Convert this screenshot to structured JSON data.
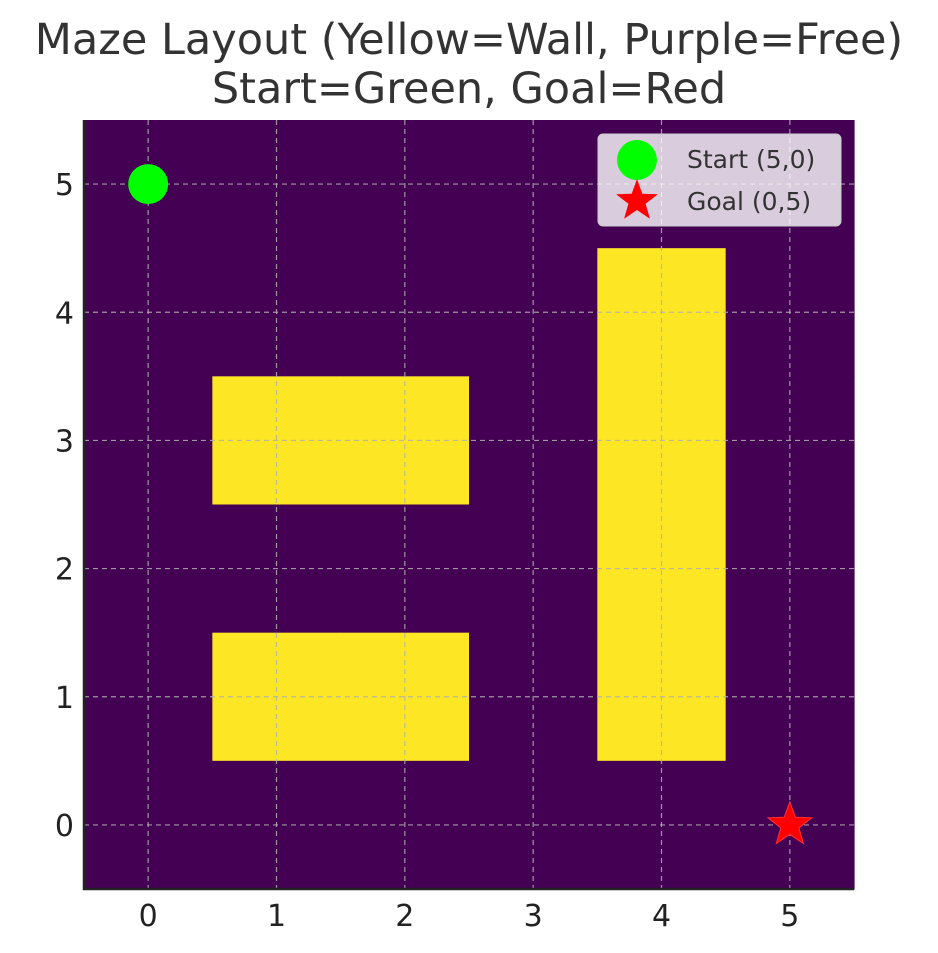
{
  "chart_data": {
    "type": "heatmap",
    "title_lines": [
      "Maze Layout (Yellow=Wall, Purple=Free)",
      "Start=Green, Goal=Red"
    ],
    "xlabel": "",
    "ylabel": "",
    "xlim": [
      -0.5,
      5.5
    ],
    "ylim": [
      -0.5,
      5.5
    ],
    "x_ticks": [
      0,
      1,
      2,
      3,
      4,
      5
    ],
    "y_ticks": [
      0,
      1,
      2,
      3,
      4,
      5
    ],
    "grid": true,
    "legend_position": "top-right",
    "colors": {
      "free": "#440154",
      "wall": "#fde725",
      "start": "#00ff00",
      "goal": "#ff0000",
      "grid": "#b0b0b0"
    },
    "cells_legend": {
      "0": "free",
      "1": "wall"
    },
    "grid_rows_top_to_bottom": [
      [
        0,
        0,
        0,
        0,
        0,
        0
      ],
      [
        0,
        0,
        0,
        0,
        1,
        0
      ],
      [
        0,
        1,
        1,
        0,
        1,
        0
      ],
      [
        0,
        0,
        0,
        0,
        1,
        0
      ],
      [
        0,
        1,
        1,
        0,
        1,
        0
      ],
      [
        0,
        0,
        0,
        0,
        0,
        0
      ]
    ],
    "markers": [
      {
        "id": "start",
        "label": "Start (5,0)",
        "shape": "circle",
        "color": "#00ff00",
        "x": 0,
        "y": 5
      },
      {
        "id": "goal",
        "label": "Goal (0,5)",
        "shape": "star",
        "color": "#ff0000",
        "x": 5,
        "y": 0
      }
    ]
  }
}
